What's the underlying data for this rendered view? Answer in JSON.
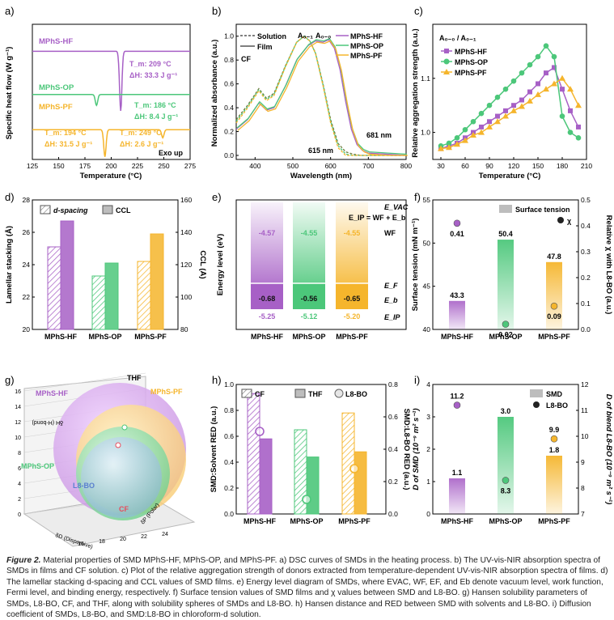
{
  "panels": {
    "a": "a)",
    "b": "b)",
    "c": "c)",
    "d": "d)",
    "e": "e)",
    "f": "f)",
    "g": "g)",
    "h": "h)",
    "i": "i)"
  },
  "colors": {
    "hf": "#a760c6",
    "op": "#4cc77a",
    "pf": "#f5b52c",
    "grey": "#c9c9c9",
    "dark": "#3a3a3a"
  },
  "chart_data": [
    {
      "id": "a",
      "type": "line",
      "title": "",
      "xlabel": "Temperature (°C)",
      "ylabel": "Specific heat flow (W g⁻¹)",
      "xlim": [
        125,
        275
      ],
      "xticks": [
        "125",
        "150",
        "175",
        "200",
        "225",
        "250",
        "275"
      ],
      "series": [
        {
          "name": "MPhS-HF",
          "baseline": 4,
          "peaks": [
            {
              "x": 209,
              "depth": 2.2
            }
          ]
        },
        {
          "name": "MPhS-OP",
          "baseline": 2.4,
          "peaks": [
            {
              "x": 186,
              "depth": 0.4
            }
          ]
        },
        {
          "name": "MPhS-PF",
          "baseline": 1.1,
          "peaks": [
            {
              "x": 194,
              "depth": 1.0
            },
            {
              "x": 249,
              "depth": 0.3
            }
          ]
        }
      ],
      "annotations": [
        "T_m: 209 °C",
        "ΔH: 33.3 J g⁻¹",
        "T_m: 186 °C",
        "ΔH: 8.4 J g⁻¹",
        "T_m: 194 °C",
        "ΔH: 31.5 J g⁻¹",
        "T_m: 249 °C",
        "ΔH: 2.6 J g⁻¹"
      ],
      "corner_note": "Exo up"
    },
    {
      "id": "b",
      "type": "line",
      "xlabel": "Wavelength (nm)",
      "ylabel": "Normalized absorbance (a.u.)",
      "xlim": [
        350,
        800
      ],
      "ylim": [
        0,
        1.05
      ],
      "xticks": [
        "400",
        "500",
        "600",
        "700",
        "800"
      ],
      "yticks": [
        "0.0",
        "0.2",
        "0.4",
        "0.6",
        "0.8",
        "1.0"
      ],
      "legend_styles": [
        "Solution",
        "Film"
      ],
      "legend_series": [
        "MPhS-HF",
        "MPhS-OP",
        "MPhS-PF"
      ],
      "labels": [
        "A₀₋₁",
        "A₀₋₀",
        "CF",
        "615 nm",
        "681 nm"
      ],
      "series": [
        {
          "name": "Solution",
          "x": [
            350,
            380,
            410,
            430,
            450,
            480,
            510,
            530,
            545,
            560,
            580,
            600,
            620,
            640,
            660,
            680,
            700,
            750,
            800
          ],
          "y": [
            0.3,
            0.42,
            0.56,
            0.48,
            0.52,
            0.75,
            0.95,
            1.0,
            0.96,
            0.86,
            0.6,
            0.3,
            0.1,
            0.03,
            0.01,
            0.0,
            0.0,
            0.0,
            0.0
          ]
        },
        {
          "name": "Film",
          "x": [
            350,
            380,
            410,
            430,
            450,
            480,
            510,
            540,
            560,
            580,
            595,
            610,
            625,
            640,
            655,
            670,
            685,
            700,
            750,
            800
          ],
          "y": [
            0.22,
            0.3,
            0.44,
            0.38,
            0.4,
            0.58,
            0.8,
            0.92,
            0.96,
            0.95,
            0.97,
            0.9,
            0.72,
            0.45,
            0.22,
            0.09,
            0.04,
            0.02,
            0.01,
            0.0
          ]
        }
      ]
    },
    {
      "id": "c",
      "type": "line",
      "xlabel": "Temperature (°C)",
      "ylabel": "Relative aggregation strength (a.u.)",
      "inner_title": "A₀₋₀ / A₀₋₁",
      "xlim": [
        20,
        210
      ],
      "ylim": [
        0.95,
        1.2
      ],
      "xticks": [
        "30",
        "60",
        "90",
        "120",
        "150",
        "180",
        "210"
      ],
      "yticks": [
        "1.0",
        "1.1"
      ],
      "x": [
        30,
        40,
        50,
        60,
        70,
        80,
        90,
        100,
        110,
        120,
        130,
        140,
        150,
        160,
        170,
        180,
        190,
        200
      ],
      "series": [
        {
          "name": "MPhS-HF",
          "values": [
            0.97,
            0.975,
            0.98,
            0.99,
            1.0,
            1.01,
            1.02,
            1.03,
            1.04,
            1.05,
            1.06,
            1.075,
            1.09,
            1.11,
            1.12,
            1.08,
            1.04,
            1.01
          ]
        },
        {
          "name": "MPhS-OP",
          "values": [
            0.975,
            0.98,
            0.99,
            1.005,
            1.02,
            1.035,
            1.05,
            1.065,
            1.08,
            1.095,
            1.11,
            1.125,
            1.14,
            1.16,
            1.14,
            1.03,
            1.0,
            0.99
          ]
        },
        {
          "name": "MPhS-PF",
          "values": [
            0.97,
            0.972,
            0.978,
            0.985,
            0.995,
            1.0,
            1.01,
            1.02,
            1.03,
            1.04,
            1.048,
            1.058,
            1.07,
            1.08,
            1.09,
            1.1,
            1.08,
            1.05
          ]
        }
      ]
    },
    {
      "id": "d",
      "type": "bar",
      "categories": [
        "MPhS-HF",
        "MPhS-OP",
        "MPhS-PF"
      ],
      "ylabel_left": "Lamellar stacking (Å)",
      "ylabel_right": "CCL (Å)",
      "ylim_left": [
        20,
        28
      ],
      "ylim_right": [
        80,
        160
      ],
      "yticks_left": [
        "20",
        "22",
        "24",
        "26",
        "28"
      ],
      "yticks_right": [
        "80",
        "100",
        "120",
        "140",
        "160"
      ],
      "legend": [
        "d-spacing",
        "CCL"
      ],
      "series": [
        {
          "name": "d-spacing",
          "values": [
            25.1,
            23.3,
            24.2
          ]
        },
        {
          "name": "CCL",
          "values": [
            147,
            121,
            139
          ]
        }
      ]
    },
    {
      "id": "e",
      "type": "bar",
      "categories": [
        "MPhS-HF",
        "MPhS-OP",
        "MPhS-PF"
      ],
      "ylabel": "Energy level (eV)",
      "equation": "E_IP = WF + E_b",
      "level_labels": [
        "E_VAC",
        "WF",
        "E_F",
        "E_b",
        "E_IP"
      ],
      "series": [
        {
          "name": "WF",
          "values": [
            -4.57,
            -4.55,
            -4.55
          ]
        },
        {
          "name": "Eb",
          "values": [
            -0.68,
            -0.56,
            -0.65
          ]
        },
        {
          "name": "EIP",
          "values": [
            -5.25,
            -5.12,
            -5.2
          ]
        }
      ],
      "value_labels": {
        "wf": [
          "-4.57",
          "-4.55",
          "-4.55"
        ],
        "eb": [
          "-0.68",
          "-0.56",
          "-0.65"
        ],
        "eip": [
          "-5.25",
          "-5.12",
          "-5.20"
        ]
      }
    },
    {
      "id": "f",
      "type": "bar",
      "categories": [
        "MPhS-HF",
        "MPhS-OP",
        "MPhS-PF"
      ],
      "ylabel_left": "Surface tension (mN m⁻¹)",
      "ylabel_right": "Relative χ with L8-BO (a.u.)",
      "ylim_left": [
        40,
        55
      ],
      "ylim_right": [
        0,
        0.5
      ],
      "yticks_left": [
        "40",
        "45",
        "50",
        "55"
      ],
      "yticks_right": [
        "0.0",
        "0.1",
        "0.2",
        "0.3",
        "0.4",
        "0.5"
      ],
      "legend": [
        "Surface tension",
        "χ"
      ],
      "series": [
        {
          "name": "Surface tension",
          "values": [
            43.3,
            50.4,
            47.8
          ],
          "labels": [
            "43.3",
            "50.4",
            "47.8"
          ]
        },
        {
          "name": "χ",
          "values": [
            0.41,
            0.02,
            0.09
          ],
          "labels": [
            "0.41",
            "0.02",
            "0.09"
          ]
        }
      ]
    },
    {
      "id": "g",
      "type": "scatter",
      "axis_labels": [
        "δP (Polar)",
        "δD (Dispersive)",
        "δH (H-bond)"
      ],
      "yticks": [
        "0",
        "2",
        "4",
        "6",
        "8",
        "10",
        "12",
        "14",
        "16"
      ],
      "xticks": [
        "16",
        "18",
        "20",
        "22",
        "24"
      ],
      "spheres": [
        "MPhS-HF",
        "MPhS-PF",
        "MPhS-OP",
        "L8-BO"
      ],
      "points": [
        "THF",
        "CF"
      ]
    },
    {
      "id": "h",
      "type": "bar",
      "categories": [
        "MPhS-HF",
        "MPhS-OP",
        "MPhS-PF"
      ],
      "ylabel_left": "SMD:Solvent RED (a.u.)",
      "ylabel_right": "SMD:L8-BO RED (a.u.)",
      "ylim_left": [
        0,
        1.0
      ],
      "ylim_right": [
        0,
        0.8
      ],
      "yticks_left": [
        "0.0",
        "0.2",
        "0.4",
        "0.6",
        "0.8",
        "1.0"
      ],
      "yticks_right": [
        "0.0",
        "0.2",
        "0.4",
        "0.6",
        "0.8"
      ],
      "legend": [
        "CF",
        "THF",
        "L8-BO"
      ],
      "series": [
        {
          "name": "CF",
          "values": [
            0.93,
            0.65,
            0.78
          ]
        },
        {
          "name": "THF",
          "values": [
            0.58,
            0.44,
            0.48
          ]
        },
        {
          "name": "L8-BO",
          "values": [
            0.51,
            0.09,
            0.28
          ]
        }
      ]
    },
    {
      "id": "i",
      "type": "bar",
      "categories": [
        "MPhS-HF",
        "MPhS-OP",
        "MPhS-PF"
      ],
      "ylabel_left": "D of SMD (10⁻⁹ m² s⁻¹)",
      "ylabel_right": "D of blend L8-BO (10⁻⁹ m² s⁻¹)",
      "ylim_left": [
        0,
        4
      ],
      "ylim_right": [
        7,
        12
      ],
      "yticks_left": [
        "0",
        "1",
        "2",
        "3",
        "4"
      ],
      "yticks_right": [
        "7",
        "8",
        "9",
        "10",
        "11",
        "12"
      ],
      "legend": [
        "SMD",
        "L8-BO"
      ],
      "series": [
        {
          "name": "SMD",
          "values": [
            1.1,
            3.0,
            1.8
          ],
          "labels": [
            "1.1",
            "3.0",
            "1.8"
          ]
        },
        {
          "name": "L8-BO",
          "values": [
            11.2,
            8.3,
            9.9
          ],
          "labels": [
            "11.2",
            "8.3",
            "9.9"
          ]
        }
      ]
    }
  ],
  "caption": {
    "fig": "Figure 2.",
    "text": " Material properties of SMD MPhS-HF, MPhS-OP, and MPhS-PF. a) DSC curves of SMDs in the heating process. b) The UV-vis-NIR absorption spectra of SMDs in films and CF solution. c) Plot of the relative aggregation strength of donors extracted from temperature-dependent UV-vis-NIR absorption spectra of films. d) The lamellar stacking d-spacing and CCL values of SMD films. e) Energy level diagram of SMDs, where EVAC, WF, EF, and Eb denote vacuum level, work function, Fermi level, and binding energy, respectively. f) Surface tension values of SMD films and χ values between SMD and L8-BO. g) Hansen solubility parameters of SMDs, L8-BO, CF, and THF, along with solubility spheres of SMDs and L8-BO. h) Hansen distance and RED between SMD with solvents and L8-BO. i) Diffusion coefficient of SMDs, L8-BO, and SMD:L8-BO in chloroform-d solution."
  }
}
